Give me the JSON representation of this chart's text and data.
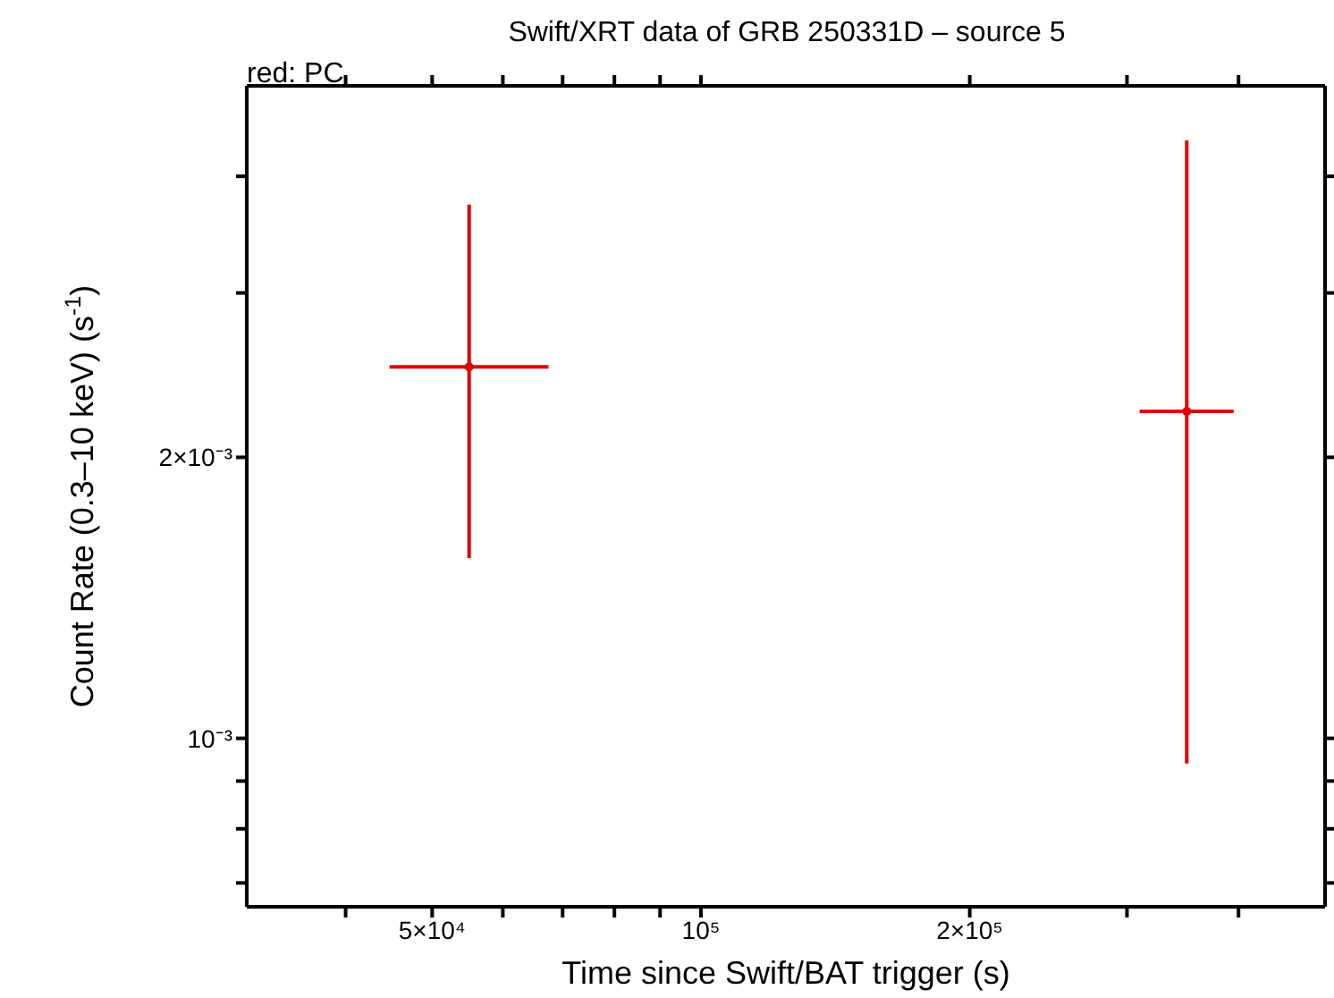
{
  "chart_data": {
    "type": "scatter",
    "title": "Swift/XRT data of GRB 250331D – source 5",
    "xlabel": "Time since Swift/BAT trigger (s)",
    "ylabel": "Count Rate (0.3–10 keV) (s$^{-1}$)",
    "annotations": [
      "red: PC"
    ],
    "log": "xy",
    "xlim": [
      31000,
      500000
    ],
    "ylim": [
      0.00066,
      0.005
    ],
    "xticks": [
      {
        "value": 40000,
        "label": null
      },
      {
        "value": 50000,
        "label": "5×10⁴"
      },
      {
        "value": 60000,
        "label": null
      },
      {
        "value": 70000,
        "label": null
      },
      {
        "value": 80000,
        "label": null
      },
      {
        "value": 90000,
        "label": null
      },
      {
        "value": 100000,
        "label": "10⁵"
      },
      {
        "value": 200000,
        "label": "2×10⁵"
      },
      {
        "value": 300000,
        "label": null
      },
      {
        "value": 400000,
        "label": null
      }
    ],
    "yticks": [
      {
        "value": 0.0007,
        "label": null
      },
      {
        "value": 0.0008,
        "label": null
      },
      {
        "value": 0.0009,
        "label": null
      },
      {
        "value": 0.001,
        "label": "10⁻³"
      },
      {
        "value": 0.002,
        "label": "2×10⁻³"
      },
      {
        "value": 0.003,
        "label": null
      },
      {
        "value": 0.004,
        "label": null
      }
    ],
    "series": [
      {
        "color": "#e00000",
        "x": [
          55000,
          350000
        ],
        "values": [
          0.0025,
          0.00224
        ],
        "errors": [
          [
            0.00156,
            0.00373
          ],
          [
            0.00094,
            0.00437
          ]
        ],
        "xerrors": [
          [
            44800,
            67500
          ],
          [
            310000,
            395000
          ]
        ]
      }
    ]
  }
}
